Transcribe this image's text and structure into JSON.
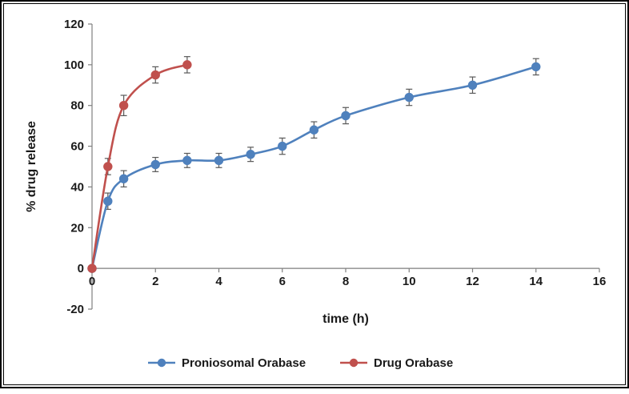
{
  "figure": {
    "background": "#ffffff",
    "border_color": "#000000"
  },
  "chart_data": {
    "type": "line",
    "title": "",
    "xlabel": "time (h)",
    "ylabel": "% drug release",
    "xlim": [
      0,
      16
    ],
    "ylim": [
      -20,
      120
    ],
    "xticks": [
      0,
      2,
      4,
      6,
      8,
      10,
      12,
      14,
      16
    ],
    "yticks": [
      -20,
      0,
      20,
      40,
      60,
      80,
      100,
      120
    ],
    "grid": false,
    "legend_position": "bottom",
    "error_bar_color": "#595959",
    "series": [
      {
        "name": "Proniosomal Orabase",
        "color": "#4F81BD",
        "x": [
          0,
          0.5,
          1,
          2,
          3,
          4,
          5,
          6,
          7,
          8,
          10,
          12,
          14
        ],
        "y": [
          0,
          33,
          44,
          51,
          53,
          53,
          56,
          60,
          68,
          75,
          84,
          90,
          99
        ],
        "yerr": [
          1,
          4,
          4,
          3.5,
          3.5,
          3.5,
          3.5,
          4,
          4,
          4,
          4,
          4,
          4
        ]
      },
      {
        "name": "Drug Orabase",
        "color": "#C0504D",
        "x": [
          0,
          0.5,
          1,
          2,
          3
        ],
        "y": [
          0,
          50,
          80,
          95,
          100
        ],
        "yerr": [
          1,
          4,
          5,
          4,
          4
        ]
      }
    ]
  }
}
